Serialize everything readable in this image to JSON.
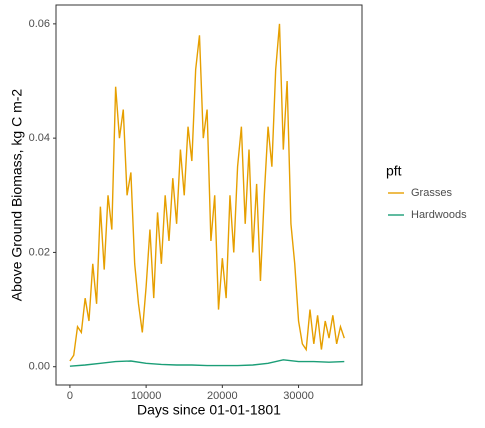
{
  "chart_data": {
    "type": "line",
    "xlabel": "Days since 01-01-1801",
    "ylabel": "Above Ground Biomass, kg C m-2",
    "legend_title": "pft",
    "legend_position": "right",
    "grid": false,
    "xlim": [
      -1825,
      38325
    ],
    "ylim": [
      -0.0032,
      0.0633
    ],
    "xticks": [
      0,
      10000,
      20000,
      30000
    ],
    "yticks": [
      {
        "value": 0,
        "label": "0.00"
      },
      {
        "value": 0.02,
        "label": "0.02"
      },
      {
        "value": 0.04,
        "label": "0.04"
      },
      {
        "value": 0.06,
        "label": "0.06"
      }
    ],
    "series": [
      {
        "name": "Grasses",
        "color": "#E69F00",
        "x": [
          0,
          500,
          1000,
          1500,
          2000,
          2500,
          3000,
          3500,
          4000,
          4500,
          5000,
          5500,
          6000,
          6500,
          7000,
          7500,
          8000,
          8500,
          9000,
          9500,
          10000,
          10500,
          11000,
          11500,
          12000,
          12500,
          13000,
          13500,
          14000,
          14500,
          15000,
          15500,
          16000,
          16500,
          17000,
          17500,
          18000,
          18500,
          19000,
          19500,
          20000,
          20500,
          21000,
          21500,
          22000,
          22500,
          23000,
          23500,
          24000,
          24500,
          25000,
          25500,
          26000,
          26500,
          27000,
          27500,
          28000,
          28500,
          29000,
          29500,
          30000,
          30500,
          31000,
          31500,
          32000,
          32500,
          33000,
          33500,
          34000,
          34500,
          35000,
          35500,
          36000
        ],
        "values": [
          0.001,
          0.002,
          0.007,
          0.006,
          0.012,
          0.008,
          0.018,
          0.011,
          0.028,
          0.017,
          0.03,
          0.024,
          0.049,
          0.04,
          0.045,
          0.03,
          0.034,
          0.018,
          0.011,
          0.006,
          0.014,
          0.024,
          0.012,
          0.027,
          0.018,
          0.03,
          0.022,
          0.033,
          0.025,
          0.038,
          0.03,
          0.042,
          0.036,
          0.052,
          0.058,
          0.04,
          0.045,
          0.022,
          0.03,
          0.01,
          0.019,
          0.012,
          0.03,
          0.02,
          0.035,
          0.042,
          0.025,
          0.038,
          0.02,
          0.032,
          0.015,
          0.03,
          0.042,
          0.035,
          0.052,
          0.06,
          0.038,
          0.05,
          0.025,
          0.018,
          0.008,
          0.004,
          0.003,
          0.01,
          0.004,
          0.009,
          0.003,
          0.008,
          0.005,
          0.009,
          0.004,
          0.007,
          0.005
        ]
      },
      {
        "name": "Hardwoods",
        "color": "#1B9E77",
        "x": [
          0,
          2000,
          4000,
          6000,
          8000,
          10000,
          12000,
          14000,
          16000,
          18000,
          20000,
          22000,
          24000,
          26000,
          28000,
          30000,
          32000,
          34000,
          36000
        ],
        "values": [
          0.0001,
          0.0003,
          0.0006,
          0.0009,
          0.001,
          0.0006,
          0.0004,
          0.0003,
          0.0003,
          0.0002,
          0.0002,
          0.0002,
          0.0003,
          0.0006,
          0.0012,
          0.0009,
          0.0009,
          0.0008,
          0.0009
        ]
      }
    ]
  }
}
